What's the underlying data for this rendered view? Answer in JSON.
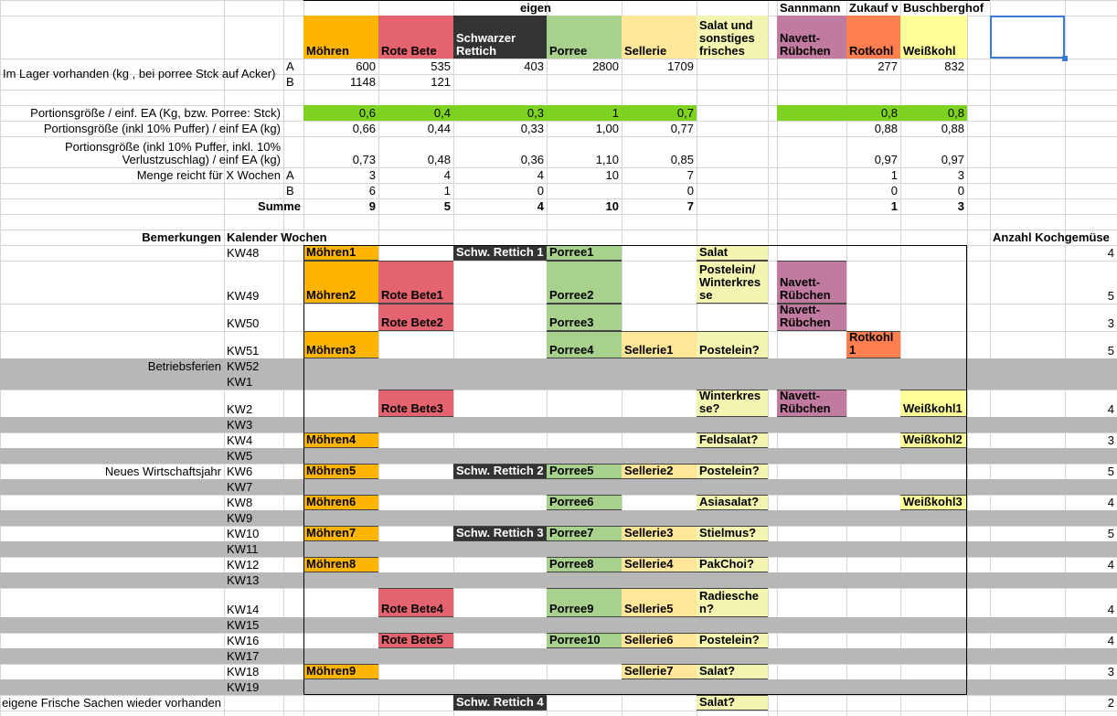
{
  "header": {
    "eigen": "eigen",
    "sannmann": "Sannmann",
    "zukauf": "Zukauf v",
    "buschberghof": "Buschberghof"
  },
  "columns": [
    "Möhren",
    "Rote Bete",
    "Schwarzer Rettich",
    "Porree",
    "Sellerie",
    "Salat und sonstiges frisches",
    "Navett-Rübchen",
    "Rotkohl",
    "Weißkohl"
  ],
  "summary": [
    {
      "label": "Im Lager vorhanden (kg , bei porree Stck auf Acker)",
      "sub": "A",
      "values": [
        600,
        535,
        403,
        2800,
        1709,
        null,
        null,
        277,
        832
      ]
    },
    {
      "label": null,
      "sub": "B",
      "values": [
        1148,
        121,
        null,
        null,
        null,
        null,
        null,
        null,
        null
      ]
    },
    {
      "label": "Portionsgröße / einf. EA (Kg, bzw. Porree: Stck)",
      "sub": null,
      "values": [
        "0,6",
        "0,4",
        "0,3",
        "1",
        "0,7",
        null,
        null,
        "0,8",
        "0,8"
      ]
    },
    {
      "label": "Portionsgröße (inkl 10% Puffer) / einf  EA (kg)",
      "sub": null,
      "values": [
        "0,66",
        "0,44",
        "0,33",
        "1,00",
        "0,77",
        null,
        null,
        "0,88",
        "0,88"
      ]
    },
    {
      "label": "Portionsgröße (inkl 10% Puffer, inkl. 10% Verlustzuschlag) / einf  EA (kg)",
      "sub": null,
      "values": [
        "0,73",
        "0,48",
        "0,36",
        "1,10",
        "0,85",
        null,
        null,
        "0,97",
        "0,97"
      ]
    },
    {
      "label": "Menge reicht für X Wochen",
      "sub": "A",
      "values": [
        3,
        4,
        4,
        10,
        7,
        null,
        null,
        1,
        3
      ]
    },
    {
      "label": null,
      "sub": "B",
      "values": [
        6,
        1,
        0,
        null,
        0,
        null,
        null,
        0,
        0
      ]
    },
    {
      "label": "Summe",
      "sub": null,
      "values": [
        9,
        5,
        4,
        10,
        7,
        null,
        null,
        1,
        3
      ]
    }
  ],
  "schedule": {
    "header": {
      "remarks": "Bemerkungen",
      "weeks": "Kalender Wochen",
      "count": "Anzahl Kochgemüse"
    },
    "rows": [
      {
        "remark": null,
        "week": "KW48",
        "cells": [
          "Möhren1",
          null,
          "Schw. Rettich 1",
          "Porree1",
          null,
          "Salat",
          null,
          null,
          null
        ],
        "count": 4
      },
      {
        "remark": null,
        "week": "KW49",
        "cells": [
          "Möhren2",
          "Rote Bete1",
          null,
          "Porree2",
          null,
          "Postelein/ Winterkresse",
          "Navett-Rübchen",
          null,
          null
        ],
        "count": 5
      },
      {
        "remark": null,
        "week": "KW50",
        "cells": [
          null,
          "Rote Bete2",
          null,
          "Porree3",
          null,
          null,
          "Navett-Rübchen",
          null,
          null
        ],
        "count": 3
      },
      {
        "remark": null,
        "week": "KW51",
        "cells": [
          "Möhren3",
          null,
          null,
          "Porree4",
          "Sellerie1",
          "Postelein?",
          null,
          "Rotkohl1",
          null
        ],
        "count": 5
      },
      {
        "remark": "Betriebsferien",
        "week": "KW52",
        "cells": [
          null,
          null,
          null,
          null,
          null,
          null,
          null,
          null,
          null
        ],
        "count": null
      },
      {
        "remark": null,
        "week": "KW1",
        "cells": [
          null,
          null,
          null,
          null,
          null,
          null,
          null,
          null,
          null
        ],
        "count": null
      },
      {
        "remark": null,
        "week": "KW2",
        "cells": [
          null,
          "Rote Bete3",
          null,
          null,
          null,
          "Winterkresse?",
          "Navett-Rübchen",
          null,
          "Weißkohl1"
        ],
        "count": 4
      },
      {
        "remark": null,
        "week": "KW3",
        "cells": [
          null,
          null,
          null,
          null,
          null,
          null,
          null,
          null,
          null
        ],
        "count": null
      },
      {
        "remark": null,
        "week": "KW4",
        "cells": [
          "Möhren4",
          null,
          null,
          null,
          null,
          "Feldsalat?",
          null,
          null,
          "Weißkohl2"
        ],
        "count": 3
      },
      {
        "remark": null,
        "week": "KW5",
        "cells": [
          null,
          null,
          null,
          null,
          null,
          null,
          null,
          null,
          null
        ],
        "count": null
      },
      {
        "remark": "Neues Wirtschaftsjahr",
        "week": "KW6",
        "cells": [
          "Möhren5",
          null,
          "Schw. Rettich 2",
          "Porree5",
          "Sellerie2",
          "Postelein?",
          null,
          null,
          null
        ],
        "count": 5
      },
      {
        "remark": null,
        "week": "KW7",
        "cells": [
          null,
          null,
          null,
          null,
          null,
          null,
          null,
          null,
          null
        ],
        "count": null
      },
      {
        "remark": null,
        "week": "KW8",
        "cells": [
          "Möhren6",
          null,
          null,
          "Porree6",
          null,
          "Asiasalat?",
          null,
          null,
          "Weißkohl3"
        ],
        "count": 4
      },
      {
        "remark": null,
        "week": "KW9",
        "cells": [
          null,
          null,
          null,
          null,
          null,
          null,
          null,
          null,
          null
        ],
        "count": null
      },
      {
        "remark": null,
        "week": "KW10",
        "cells": [
          "Möhren7",
          null,
          "Schw. Rettich 3",
          "Porree7",
          "Sellerie3",
          "Stielmus?",
          null,
          null,
          null
        ],
        "count": 5
      },
      {
        "remark": null,
        "week": "KW11",
        "cells": [
          null,
          null,
          null,
          null,
          null,
          null,
          null,
          null,
          null
        ],
        "count": null
      },
      {
        "remark": null,
        "week": "KW12",
        "cells": [
          "Möhren8",
          null,
          null,
          "Porree8",
          "Sellerie4",
          "PakChoi?",
          null,
          null,
          null
        ],
        "count": 4
      },
      {
        "remark": null,
        "week": "KW13",
        "cells": [
          null,
          null,
          null,
          null,
          null,
          null,
          null,
          null,
          null
        ],
        "count": null
      },
      {
        "remark": null,
        "week": "KW14",
        "cells": [
          null,
          "Rote Bete4",
          null,
          "Porree9",
          "Sellerie5",
          "Radieschen?",
          null,
          null,
          null
        ],
        "count": 4
      },
      {
        "remark": null,
        "week": "KW15",
        "cells": [
          null,
          null,
          null,
          null,
          null,
          null,
          null,
          null,
          null
        ],
        "count": null
      },
      {
        "remark": null,
        "week": "KW16",
        "cells": [
          null,
          "Rote Bete5",
          null,
          "Porree10",
          "Sellerie6",
          "Postelein?",
          null,
          null,
          null
        ],
        "count": 4
      },
      {
        "remark": null,
        "week": "KW17",
        "cells": [
          null,
          null,
          null,
          null,
          null,
          null,
          null,
          null,
          null
        ],
        "count": null
      },
      {
        "remark": null,
        "week": "KW18",
        "cells": [
          "Möhren9",
          null,
          null,
          null,
          "Sellerie7",
          "Salat?",
          null,
          null,
          null
        ],
        "count": 3
      },
      {
        "remark": null,
        "week": "KW19",
        "cells": [
          null,
          null,
          null,
          null,
          null,
          null,
          null,
          null,
          null
        ],
        "count": null
      },
      {
        "remark": "eigene Frische Sachen wieder vorhanden",
        "week": null,
        "cells": [
          null,
          null,
          "Schw. Rettich 4",
          null,
          null,
          "Salat?",
          null,
          null,
          null
        ],
        "count": 2
      }
    ]
  }
}
